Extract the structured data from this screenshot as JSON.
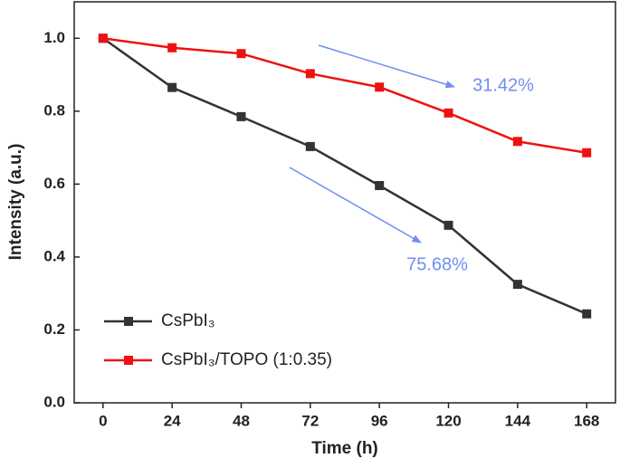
{
  "chart_data": {
    "type": "line",
    "x_label": "Time (h)",
    "y_label": "Intensity (a.u.)",
    "x": [
      0,
      24,
      48,
      72,
      96,
      120,
      144,
      168
    ],
    "series": [
      {
        "name": "CsPbI₃",
        "color": "#333333",
        "values": [
          1.0,
          0.865,
          0.785,
          0.703,
          0.596,
          0.487,
          0.325,
          0.244
        ]
      },
      {
        "name": "CsPbI₃/TOPO (1:0.35)",
        "color": "#ee1111",
        "values": [
          1.0,
          0.974,
          0.958,
          0.903,
          0.866,
          0.795,
          0.717,
          0.686
        ]
      }
    ],
    "annotations": [
      "31.42%",
      "75.68%"
    ],
    "xlim": [
      -10,
      178
    ],
    "xticks": [
      0,
      24,
      48,
      72,
      96,
      120,
      144,
      168
    ],
    "ylim": [
      0,
      1.1
    ],
    "yticks": [
      {
        "value": 0,
        "label": "0.0"
      },
      0.2,
      0.4,
      0.6,
      0.8,
      {
        "value": 1,
        "label": "1.0"
      }
    ],
    "legend": "lower left"
  }
}
